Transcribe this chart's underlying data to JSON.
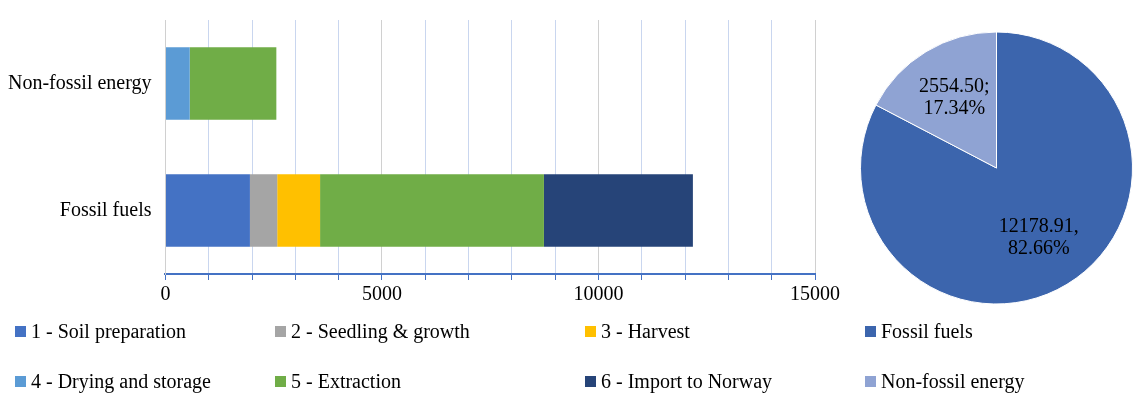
{
  "chart_data": [
    {
      "type": "bar",
      "orientation": "horizontal",
      "stacked": true,
      "categories": [
        "Non-fossil energy",
        "Fossil fuels"
      ],
      "series": [
        {
          "name": "1 - Soil preparation",
          "color": "#4472c4",
          "values": [
            null,
            1950
          ]
        },
        {
          "name": "2 - Seedling & growth",
          "color": "#a5a5a5",
          "values": [
            null,
            630
          ]
        },
        {
          "name": "3 - Harvest",
          "color": "#ffc000",
          "values": [
            null,
            990
          ]
        },
        {
          "name": "4 - Drying and storage",
          "color": "#5b9bd5",
          "values": [
            560,
            null
          ]
        },
        {
          "name": "5 - Extraction",
          "color": "#70ad47",
          "values": [
            2000,
            5170
          ]
        },
        {
          "name": "6 - Import to Norway",
          "color": "#264478",
          "values": [
            null,
            3440
          ]
        }
      ],
      "xlim": [
        0,
        15000
      ],
      "xticks": [
        0,
        {
          "value": 1000,
          "label": null
        },
        {
          "value": 2000,
          "label": null
        },
        {
          "value": 3000,
          "label": null
        },
        {
          "value": 4000,
          "label": null
        },
        5000,
        {
          "value": 6000,
          "label": null
        },
        {
          "value": 7000,
          "label": null
        },
        {
          "value": 8000,
          "label": null
        },
        {
          "value": 9000,
          "label": null
        },
        10000,
        {
          "value": 11000,
          "label": null
        },
        {
          "value": 12000,
          "label": null
        },
        {
          "value": 13000,
          "label": null
        },
        {
          "value": 14000,
          "label": null
        },
        15000
      ],
      "grid": "x",
      "legend": "bottom"
    },
    {
      "type": "pie",
      "categories": [
        "Fossil fuels",
        "Non-fossil energy"
      ],
      "values": [
        12178.91,
        2554.5
      ],
      "colors": [
        "#3c65ad",
        "#8fa3d3"
      ],
      "value_labels": [
        "12178.91, 82.66%",
        "2554.50; 17.34%"
      ],
      "legend": "bottom"
    }
  ]
}
